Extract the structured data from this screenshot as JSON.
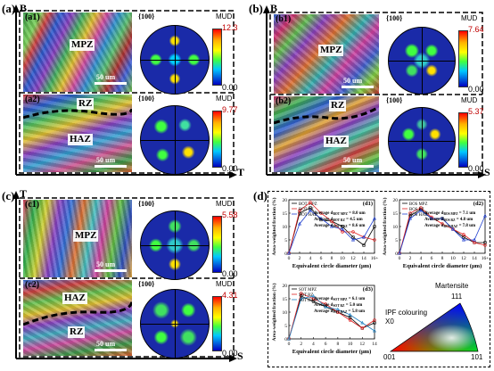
{
  "panels": {
    "a": {
      "label": "(a)",
      "axis_v": "B",
      "axis_h": "T",
      "sub1": "(a1)",
      "sub2": "(a2)",
      "mpz": "MPZ",
      "rz": "RZ",
      "haz": "HAZ",
      "scale": "50 um",
      "pf1": "{100}",
      "pf2": "{100}",
      "mud1_title": "MUD",
      "mud1_max": "12.3",
      "mud1_min": "0.00",
      "mud2_title": "MUD",
      "mud2_max": "9.77",
      "mud2_min": "0.00"
    },
    "b": {
      "label": "(b)",
      "axis_v": "B",
      "axis_h": "S",
      "sub1": "(b1)",
      "sub2": "(b2)",
      "mpz": "MPZ",
      "rz": "RZ",
      "haz": "HAZ",
      "scale": "50 um",
      "pf1": "{100}",
      "pf2": "{100}",
      "mud1_title": "MUD",
      "mud1_max": "7.64",
      "mud1_min": "0.00",
      "mud2_title": "MUD",
      "mud2_max": "5.37",
      "mud2_min": "0.00"
    },
    "c": {
      "label": "(c)",
      "axis_v": "T",
      "axis_h": "S",
      "sub1": "(c1)",
      "sub2": "(c2)",
      "mpz": "MPZ",
      "haz": "HAZ",
      "rz": "RZ",
      "scale": "50 um",
      "pf1": "{100}",
      "pf2": "{100}",
      "mud1_title": "MUD",
      "mud1_max": "5.58",
      "mud1_min": "0.00",
      "mud2_title": "MUD",
      "mud2_max": "4.31",
      "mud2_min": "0.00"
    },
    "d": {
      "label": "(d)"
    }
  },
  "ipf": {
    "title1": "IPF colouring",
    "title2": "X0",
    "phase": "Martensite",
    "c111": "111",
    "c001": "001",
    "c101": "101"
  },
  "chart_data": [
    {
      "type": "line",
      "tag": "(d1)",
      "xlabel": "Equivalent circle diameter (μm)",
      "ylabel": "Area-weighted fraction (%)",
      "x": [
        0,
        2,
        4,
        6,
        8,
        10,
        12,
        14,
        16
      ],
      "xticks": [
        "0",
        "2",
        "4",
        "6",
        "8",
        "10",
        "12",
        "14",
        "16+"
      ],
      "ylim": [
        0,
        20
      ],
      "yticks": [
        0,
        5,
        10,
        15,
        20
      ],
      "series": [
        {
          "name": "BOT MPZ",
          "color": "#000000",
          "marker": "square",
          "values": [
            0,
            15,
            17,
            12.5,
            12,
            10,
            6,
            3,
            10
          ]
        },
        {
          "name": "BOT RZ",
          "color": "#e02020",
          "marker": "circle",
          "values": [
            0,
            16,
            19,
            15,
            12,
            8,
            8,
            6,
            5
          ]
        },
        {
          "name": "BOT HAZ",
          "color": "#2040d0",
          "marker": "triangle",
          "values": [
            0,
            11,
            16,
            13,
            10,
            9,
            5,
            6,
            13
          ]
        }
      ],
      "annotations": [
        "Average d BOT MPZ = 8.0 um",
        "Average d BOT RZ = 4.5 um",
        "Average d BOT HAZ = 8.6 um"
      ],
      "annotation_prefix": "Average d",
      "annotation_subs": [
        "BOT MPZ",
        "BOT RZ",
        "BOT HAZ"
      ],
      "annotation_vals": [
        "= 8.0 um",
        "= 4.5 um",
        "= 8.6 um"
      ]
    },
    {
      "type": "line",
      "tag": "(d2)",
      "xlabel": "Equivalent circle diameter (μm)",
      "ylabel": "Area-weighted fraction (%)",
      "x": [
        0,
        2,
        4,
        6,
        8,
        10,
        12,
        14,
        16
      ],
      "xticks": [
        "0",
        "2",
        "4",
        "6",
        "8",
        "10",
        "12",
        "14",
        "16+"
      ],
      "ylim": [
        0,
        20
      ],
      "yticks": [
        0,
        5,
        10,
        15,
        20
      ],
      "series": [
        {
          "name": "BOS MPZ",
          "color": "#000000",
          "marker": "square",
          "values": [
            0,
            14,
            16.5,
            13,
            13,
            9,
            6,
            4,
            4
          ]
        },
        {
          "name": "BOS RZ",
          "color": "#e02020",
          "marker": "circle",
          "values": [
            0,
            15,
            17,
            13.5,
            11,
            9,
            7,
            4,
            3
          ]
        },
        {
          "name": "BOS HAZ",
          "color": "#2040d0",
          "marker": "triangle",
          "values": [
            0,
            13,
            16,
            13,
            13,
            9,
            5,
            5,
            14
          ]
        }
      ],
      "annotations": [
        "Average d BOS MPZ = 7.1 um",
        "Average d BOS RZ = 4.8 um",
        "Average d BOS HAZ = 7.8 um"
      ],
      "annotation_prefix": "Average d",
      "annotation_subs": [
        "BOS MPZ",
        "BOS RZ",
        "BOS HAZ"
      ],
      "annotation_vals": [
        "= 7.1 um",
        "= 4.8 um",
        "= 7.8 um"
      ]
    },
    {
      "type": "line",
      "tag": "(d3)",
      "xlabel": "Equivalent circle diameter (μm)",
      "ylabel": "Area-weighted fraction (%)",
      "x": [
        0,
        2,
        4,
        6,
        8,
        10,
        12,
        14
      ],
      "xticks": [
        "0",
        "2",
        "4",
        "6",
        "8",
        "10",
        "12",
        "14"
      ],
      "ylim": [
        0,
        20
      ],
      "yticks": [
        0,
        5,
        10,
        15,
        20
      ],
      "series": [
        {
          "name": "SOT MPZ",
          "color": "#000000",
          "marker": "square",
          "values": [
            0,
            16,
            14,
            12,
            10,
            8,
            4,
            6
          ]
        },
        {
          "name": "SOT RZ",
          "color": "#e02020",
          "marker": "circle",
          "values": [
            0,
            17,
            15,
            13,
            10,
            7,
            4,
            7
          ]
        },
        {
          "name": "SOT HAZ",
          "color": "#2080c0",
          "marker": "triangle",
          "values": [
            0,
            15,
            16,
            12,
            11,
            9,
            6,
            3
          ]
        }
      ],
      "annotations": [
        "Average d SOT MPZ = 6.1 um",
        "Average d SOT RZ = 5.0 um",
        "Average d SOT HAZ = 5.8 um"
      ],
      "annotation_prefix": "Average d",
      "annotation_subs": [
        "SOT MPZ",
        "SOT RZ",
        "SOT HAZ"
      ],
      "annotation_vals": [
        "= 6.1 um",
        "= 5.0 um",
        "= 5.8 um"
      ]
    }
  ]
}
